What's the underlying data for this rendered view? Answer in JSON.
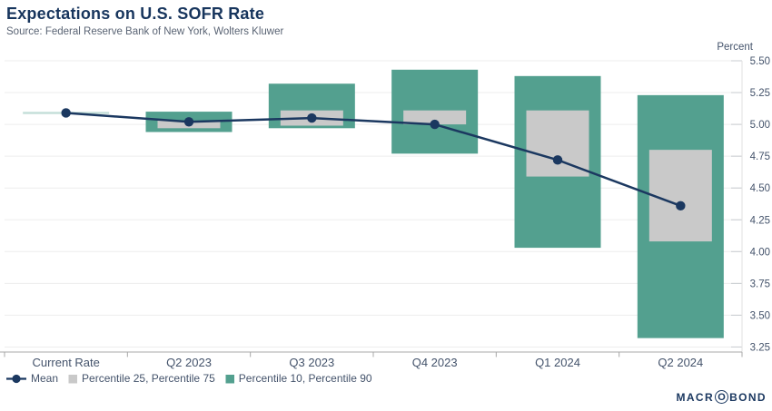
{
  "colors": {
    "navy": "#1B3860",
    "title_navy": "#17355D",
    "green": "#53A08F",
    "gray_box": "#C9C9C9",
    "axis_text": "#44536B",
    "muted_text": "#5A6474",
    "gridline": "#EDEDED",
    "tick": "#C8CCD0",
    "border": "#E2E2E2",
    "axis_line": "#A8A8A8"
  },
  "branding": {
    "prefix": "MACR",
    "circled": "O",
    "suffix": "BOND"
  },
  "chart_data": {
    "type": "box-range-line",
    "title": "Expectations on U.S. SOFR Rate",
    "source": "Source: Federal Reserve Bank of New York, Wolters Kluwer",
    "ylabel": "Percent",
    "categories": [
      "Current Rate",
      "Q2 2023",
      "Q3 2023",
      "Q4 2023",
      "Q1 2024",
      "Q2 2024"
    ],
    "series": [
      {
        "name": "Mean",
        "type": "line-dot",
        "color": "#1B3860",
        "values": [
          5.09,
          5.02,
          5.05,
          5.0,
          4.72,
          4.36
        ]
      },
      {
        "name": "Percentile 25, Percentile 75",
        "type": "box",
        "color": "#C9C9C9",
        "low": [
          5.09,
          4.97,
          4.99,
          5.0,
          4.59,
          4.08
        ],
        "high": [
          5.09,
          5.03,
          5.11,
          5.11,
          5.11,
          4.8
        ]
      },
      {
        "name": "Percentile 10, Percentile 90",
        "type": "box",
        "color": "#53A08F",
        "low": [
          5.09,
          4.94,
          4.97,
          4.77,
          4.03,
          3.32
        ],
        "high": [
          5.09,
          5.1,
          5.32,
          5.43,
          5.38,
          5.23
        ]
      }
    ],
    "y_axis": {
      "min": 3.25,
      "max": 5.5,
      "step": 0.25,
      "side": "right",
      "ticks": [
        "5.50",
        "5.25",
        "5.00",
        "4.75",
        "4.50",
        "4.25",
        "4.00",
        "3.75",
        "3.50",
        "3.25"
      ]
    },
    "legend": [
      "Mean",
      "Percentile 25, Percentile 75",
      "Percentile 10, Percentile 90"
    ],
    "legend_position": "bottom-left",
    "grid": "horizontal"
  }
}
